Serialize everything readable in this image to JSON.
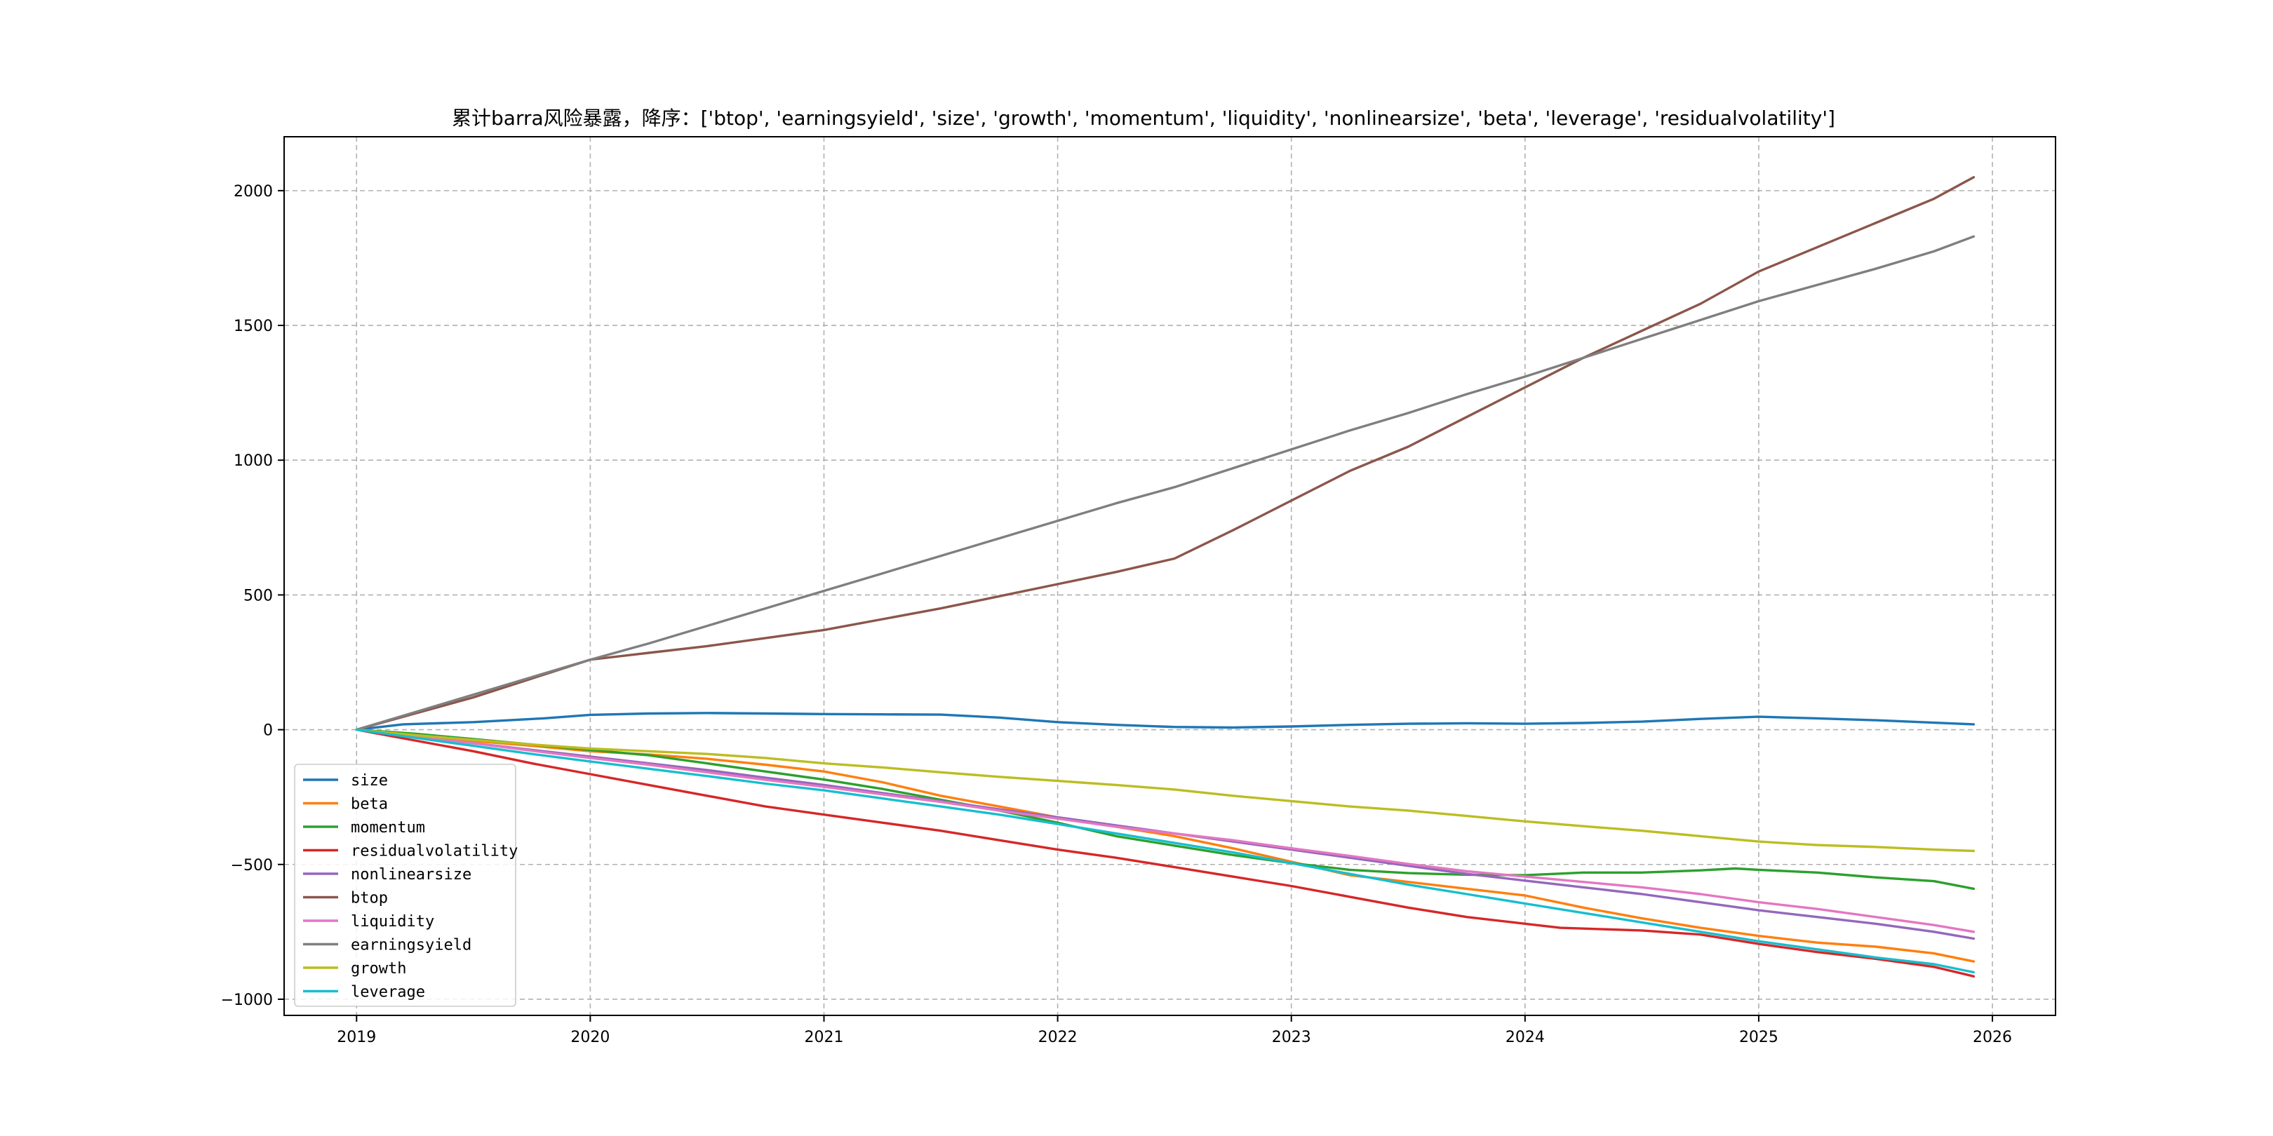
{
  "chart_data": {
    "type": "line",
    "title": "累计barra风险暴露，降序：['btop', 'earningsyield', 'size', 'growth', 'momentum', 'liquidity', 'nonlinearsize', 'beta', 'leverage', 'residualvolatility']",
    "xlabel": "",
    "ylabel": "",
    "xlim": [
      2018.69,
      2026.27
    ],
    "ylim": [
      -1060,
      2200
    ],
    "x_ticks": [
      2019,
      2020,
      2021,
      2022,
      2023,
      2024,
      2025,
      2026
    ],
    "x_tick_labels": [
      "2019",
      "2020",
      "2021",
      "2022",
      "2023",
      "2024",
      "2025",
      "2026"
    ],
    "y_ticks": [
      -1000,
      -500,
      0,
      500,
      1000,
      1500,
      2000
    ],
    "y_tick_labels": [
      "−1000",
      "−500",
      "0",
      "500",
      "1000",
      "1500",
      "2000"
    ],
    "grid": true,
    "legend_position": "lower-left",
    "series": [
      {
        "name": "size",
        "color": "#1f77b4",
        "points": [
          [
            2019.0,
            0
          ],
          [
            2019.2,
            20
          ],
          [
            2019.5,
            28
          ],
          [
            2019.8,
            42
          ],
          [
            2020.0,
            55
          ],
          [
            2020.25,
            60
          ],
          [
            2020.5,
            62
          ],
          [
            2020.75,
            60
          ],
          [
            2021.0,
            58
          ],
          [
            2021.25,
            57
          ],
          [
            2021.5,
            56
          ],
          [
            2021.75,
            45
          ],
          [
            2022.0,
            28
          ],
          [
            2022.25,
            18
          ],
          [
            2022.5,
            10
          ],
          [
            2022.75,
            8
          ],
          [
            2023.0,
            12
          ],
          [
            2023.25,
            18
          ],
          [
            2023.5,
            22
          ],
          [
            2023.75,
            24
          ],
          [
            2024.0,
            22
          ],
          [
            2024.25,
            25
          ],
          [
            2024.5,
            30
          ],
          [
            2024.75,
            40
          ],
          [
            2025.0,
            48
          ],
          [
            2025.25,
            42
          ],
          [
            2025.5,
            35
          ],
          [
            2025.75,
            26
          ],
          [
            2025.92,
            20
          ]
        ]
      },
      {
        "name": "beta",
        "color": "#ff7f0e",
        "points": [
          [
            2019.0,
            0
          ],
          [
            2019.25,
            -20
          ],
          [
            2019.5,
            -42
          ],
          [
            2019.75,
            -60
          ],
          [
            2020.0,
            -80
          ],
          [
            2020.25,
            -92
          ],
          [
            2020.5,
            -108
          ],
          [
            2020.75,
            -130
          ],
          [
            2021.0,
            -155
          ],
          [
            2021.25,
            -195
          ],
          [
            2021.5,
            -245
          ],
          [
            2021.75,
            -285
          ],
          [
            2022.0,
            -325
          ],
          [
            2022.25,
            -360
          ],
          [
            2022.5,
            -395
          ],
          [
            2022.75,
            -440
          ],
          [
            2023.0,
            -490
          ],
          [
            2023.25,
            -540
          ],
          [
            2023.5,
            -565
          ],
          [
            2023.75,
            -590
          ],
          [
            2024.0,
            -615
          ],
          [
            2024.25,
            -660
          ],
          [
            2024.5,
            -700
          ],
          [
            2024.75,
            -735
          ],
          [
            2025.0,
            -765
          ],
          [
            2025.25,
            -790
          ],
          [
            2025.5,
            -805
          ],
          [
            2025.75,
            -830
          ],
          [
            2025.92,
            -860
          ]
        ]
      },
      {
        "name": "momentum",
        "color": "#2ca02c",
        "points": [
          [
            2019.0,
            0
          ],
          [
            2019.25,
            -15
          ],
          [
            2019.5,
            -35
          ],
          [
            2019.75,
            -55
          ],
          [
            2020.0,
            -75
          ],
          [
            2020.25,
            -95
          ],
          [
            2020.5,
            -125
          ],
          [
            2020.75,
            -155
          ],
          [
            2021.0,
            -185
          ],
          [
            2021.25,
            -220
          ],
          [
            2021.5,
            -260
          ],
          [
            2021.75,
            -300
          ],
          [
            2022.0,
            -345
          ],
          [
            2022.25,
            -395
          ],
          [
            2022.5,
            -430
          ],
          [
            2022.75,
            -465
          ],
          [
            2023.0,
            -495
          ],
          [
            2023.25,
            -520
          ],
          [
            2023.5,
            -532
          ],
          [
            2023.75,
            -538
          ],
          [
            2024.0,
            -540
          ],
          [
            2024.25,
            -530
          ],
          [
            2024.5,
            -530
          ],
          [
            2024.75,
            -522
          ],
          [
            2024.9,
            -515
          ],
          [
            2025.0,
            -520
          ],
          [
            2025.25,
            -530
          ],
          [
            2025.5,
            -548
          ],
          [
            2025.75,
            -562
          ],
          [
            2025.92,
            -590
          ]
        ]
      },
      {
        "name": "residualvolatility",
        "color": "#d62728",
        "points": [
          [
            2019.0,
            0
          ],
          [
            2019.25,
            -40
          ],
          [
            2019.5,
            -80
          ],
          [
            2019.75,
            -125
          ],
          [
            2020.0,
            -165
          ],
          [
            2020.25,
            -205
          ],
          [
            2020.5,
            -245
          ],
          [
            2020.75,
            -285
          ],
          [
            2021.0,
            -315
          ],
          [
            2021.25,
            -345
          ],
          [
            2021.5,
            -375
          ],
          [
            2021.75,
            -410
          ],
          [
            2022.0,
            -445
          ],
          [
            2022.25,
            -475
          ],
          [
            2022.5,
            -510
          ],
          [
            2022.75,
            -545
          ],
          [
            2023.0,
            -580
          ],
          [
            2023.25,
            -620
          ],
          [
            2023.5,
            -660
          ],
          [
            2023.75,
            -695
          ],
          [
            2024.0,
            -720
          ],
          [
            2024.15,
            -735
          ],
          [
            2024.5,
            -745
          ],
          [
            2024.75,
            -760
          ],
          [
            2025.0,
            -795
          ],
          [
            2025.25,
            -825
          ],
          [
            2025.5,
            -850
          ],
          [
            2025.75,
            -880
          ],
          [
            2025.92,
            -915
          ]
        ]
      },
      {
        "name": "nonlinearsize",
        "color": "#9467bd",
        "points": [
          [
            2019.0,
            0
          ],
          [
            2019.25,
            -25
          ],
          [
            2019.5,
            -50
          ],
          [
            2019.75,
            -75
          ],
          [
            2020.0,
            -100
          ],
          [
            2020.25,
            -125
          ],
          [
            2020.5,
            -150
          ],
          [
            2020.75,
            -178
          ],
          [
            2021.0,
            -205
          ],
          [
            2021.25,
            -235
          ],
          [
            2021.5,
            -265
          ],
          [
            2021.75,
            -295
          ],
          [
            2022.0,
            -325
          ],
          [
            2022.25,
            -355
          ],
          [
            2022.5,
            -385
          ],
          [
            2022.75,
            -415
          ],
          [
            2023.0,
            -445
          ],
          [
            2023.25,
            -475
          ],
          [
            2023.5,
            -505
          ],
          [
            2023.75,
            -535
          ],
          [
            2024.0,
            -560
          ],
          [
            2024.25,
            -585
          ],
          [
            2024.5,
            -610
          ],
          [
            2024.75,
            -640
          ],
          [
            2025.0,
            -670
          ],
          [
            2025.25,
            -695
          ],
          [
            2025.5,
            -720
          ],
          [
            2025.75,
            -750
          ],
          [
            2025.92,
            -775
          ]
        ]
      },
      {
        "name": "btop",
        "color": "#8c564b",
        "points": [
          [
            2019.0,
            0
          ],
          [
            2019.25,
            60
          ],
          [
            2019.5,
            120
          ],
          [
            2019.75,
            190
          ],
          [
            2020.0,
            260
          ],
          [
            2020.25,
            285
          ],
          [
            2020.5,
            310
          ],
          [
            2020.75,
            340
          ],
          [
            2021.0,
            370
          ],
          [
            2021.25,
            410
          ],
          [
            2021.5,
            450
          ],
          [
            2021.75,
            495
          ],
          [
            2022.0,
            540
          ],
          [
            2022.25,
            585
          ],
          [
            2022.5,
            635
          ],
          [
            2022.75,
            740
          ],
          [
            2023.0,
            850
          ],
          [
            2023.25,
            960
          ],
          [
            2023.5,
            1050
          ],
          [
            2023.75,
            1160
          ],
          [
            2024.0,
            1270
          ],
          [
            2024.25,
            1380
          ],
          [
            2024.5,
            1480
          ],
          [
            2024.75,
            1580
          ],
          [
            2025.0,
            1700
          ],
          [
            2025.25,
            1790
          ],
          [
            2025.5,
            1880
          ],
          [
            2025.75,
            1970
          ],
          [
            2025.92,
            2050
          ]
        ]
      },
      {
        "name": "liquidity",
        "color": "#e377c2",
        "points": [
          [
            2019.0,
            0
          ],
          [
            2019.25,
            -25
          ],
          [
            2019.5,
            -50
          ],
          [
            2019.75,
            -78
          ],
          [
            2020.0,
            -105
          ],
          [
            2020.25,
            -130
          ],
          [
            2020.5,
            -158
          ],
          [
            2020.75,
            -186
          ],
          [
            2021.0,
            -212
          ],
          [
            2021.25,
            -240
          ],
          [
            2021.5,
            -268
          ],
          [
            2021.75,
            -300
          ],
          [
            2022.0,
            -330
          ],
          [
            2022.25,
            -360
          ],
          [
            2022.5,
            -385
          ],
          [
            2022.75,
            -410
          ],
          [
            2023.0,
            -440
          ],
          [
            2023.25,
            -468
          ],
          [
            2023.5,
            -498
          ],
          [
            2023.75,
            -525
          ],
          [
            2024.0,
            -545
          ],
          [
            2024.25,
            -565
          ],
          [
            2024.5,
            -585
          ],
          [
            2024.75,
            -610
          ],
          [
            2025.0,
            -640
          ],
          [
            2025.25,
            -665
          ],
          [
            2025.5,
            -695
          ],
          [
            2025.75,
            -725
          ],
          [
            2025.92,
            -750
          ]
        ]
      },
      {
        "name": "earningsyield",
        "color": "#7f7f7f",
        "points": [
          [
            2019.0,
            0
          ],
          [
            2019.25,
            65
          ],
          [
            2019.5,
            130
          ],
          [
            2019.75,
            195
          ],
          [
            2020.0,
            260
          ],
          [
            2020.25,
            320
          ],
          [
            2020.5,
            385
          ],
          [
            2020.75,
            450
          ],
          [
            2021.0,
            515
          ],
          [
            2021.25,
            580
          ],
          [
            2021.5,
            645
          ],
          [
            2021.75,
            710
          ],
          [
            2022.0,
            775
          ],
          [
            2022.25,
            840
          ],
          [
            2022.5,
            900
          ],
          [
            2022.75,
            970
          ],
          [
            2023.0,
            1040
          ],
          [
            2023.25,
            1110
          ],
          [
            2023.5,
            1175
          ],
          [
            2023.75,
            1245
          ],
          [
            2024.0,
            1310
          ],
          [
            2024.25,
            1380
          ],
          [
            2024.5,
            1450
          ],
          [
            2024.75,
            1520
          ],
          [
            2025.0,
            1590
          ],
          [
            2025.25,
            1650
          ],
          [
            2025.5,
            1710
          ],
          [
            2025.75,
            1775
          ],
          [
            2025.92,
            1830
          ]
        ]
      },
      {
        "name": "growth",
        "color": "#bcbd22",
        "points": [
          [
            2019.0,
            0
          ],
          [
            2019.25,
            -20
          ],
          [
            2019.5,
            -38
          ],
          [
            2019.75,
            -55
          ],
          [
            2020.0,
            -70
          ],
          [
            2020.25,
            -80
          ],
          [
            2020.5,
            -90
          ],
          [
            2020.75,
            -105
          ],
          [
            2021.0,
            -125
          ],
          [
            2021.25,
            -140
          ],
          [
            2021.5,
            -158
          ],
          [
            2021.75,
            -175
          ],
          [
            2022.0,
            -190
          ],
          [
            2022.25,
            -205
          ],
          [
            2022.5,
            -222
          ],
          [
            2022.75,
            -245
          ],
          [
            2023.0,
            -265
          ],
          [
            2023.25,
            -285
          ],
          [
            2023.5,
            -300
          ],
          [
            2023.75,
            -320
          ],
          [
            2024.0,
            -340
          ],
          [
            2024.25,
            -358
          ],
          [
            2024.5,
            -375
          ],
          [
            2024.75,
            -395
          ],
          [
            2025.0,
            -415
          ],
          [
            2025.25,
            -428
          ],
          [
            2025.5,
            -435
          ],
          [
            2025.75,
            -445
          ],
          [
            2025.92,
            -450
          ]
        ]
      },
      {
        "name": "leverage",
        "color": "#17becf",
        "points": [
          [
            2019.0,
            0
          ],
          [
            2019.25,
            -30
          ],
          [
            2019.5,
            -60
          ],
          [
            2019.75,
            -90
          ],
          [
            2020.0,
            -118
          ],
          [
            2020.25,
            -145
          ],
          [
            2020.5,
            -172
          ],
          [
            2020.75,
            -200
          ],
          [
            2021.0,
            -225
          ],
          [
            2021.25,
            -255
          ],
          [
            2021.5,
            -285
          ],
          [
            2021.75,
            -315
          ],
          [
            2022.0,
            -350
          ],
          [
            2022.25,
            -385
          ],
          [
            2022.5,
            -420
          ],
          [
            2022.75,
            -455
          ],
          [
            2023.0,
            -495
          ],
          [
            2023.25,
            -535
          ],
          [
            2023.5,
            -575
          ],
          [
            2023.75,
            -610
          ],
          [
            2024.0,
            -645
          ],
          [
            2024.25,
            -680
          ],
          [
            2024.5,
            -715
          ],
          [
            2024.75,
            -750
          ],
          [
            2025.0,
            -785
          ],
          [
            2025.25,
            -815
          ],
          [
            2025.5,
            -845
          ],
          [
            2025.75,
            -870
          ],
          [
            2025.92,
            -900
          ]
        ]
      }
    ]
  }
}
